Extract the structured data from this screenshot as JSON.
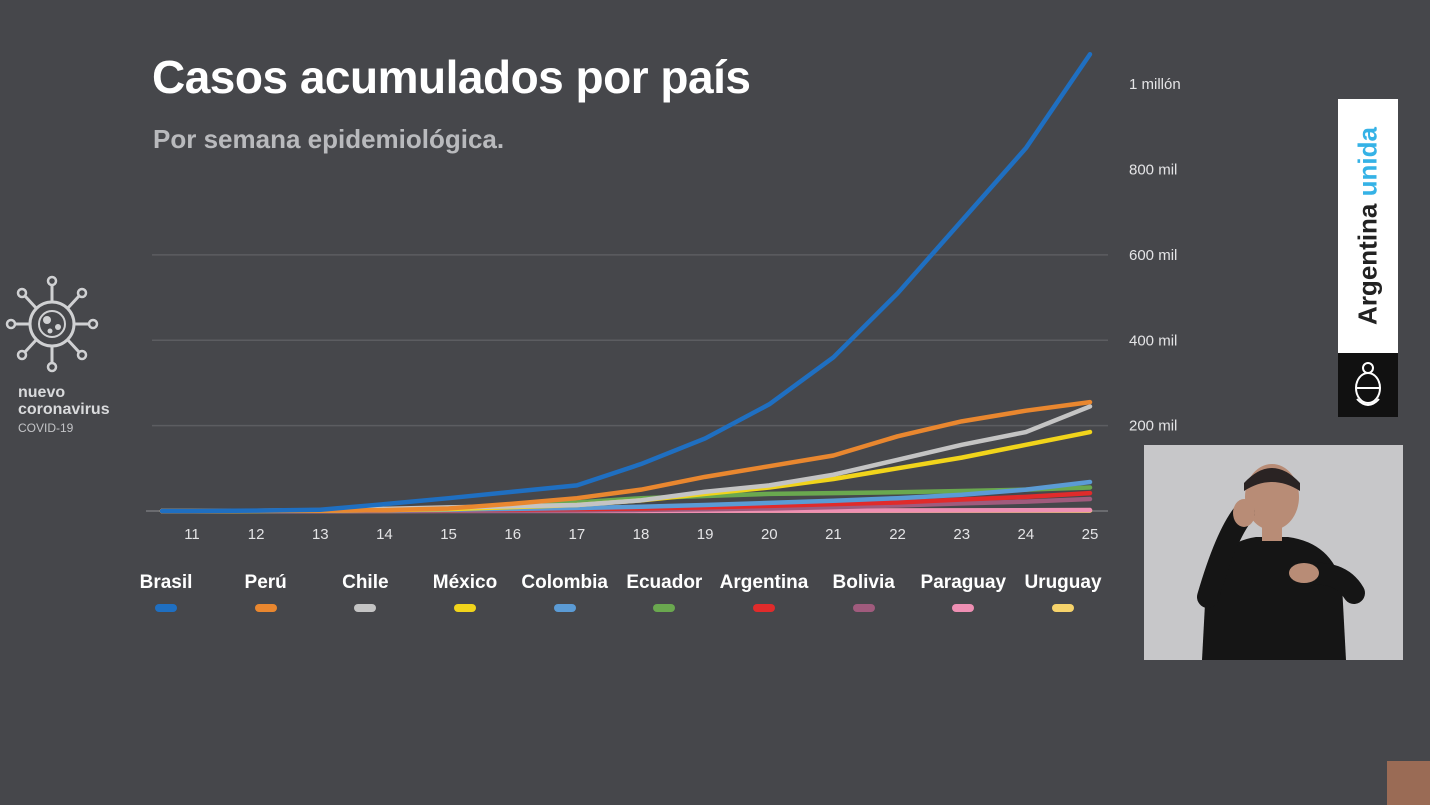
{
  "header": {
    "title": "Casos acumulados por país",
    "subtitle": "Por semana epidemiológica."
  },
  "logo": {
    "line1": "nuevo",
    "line2": "coronavirus",
    "line3": "COVID-19",
    "icon": "virus-icon"
  },
  "brand": {
    "word1": "Argentina",
    "word2": "unida",
    "accent_color": "#35b2e6",
    "icon": "national-seal-icon"
  },
  "chart_data": {
    "type": "line",
    "title": "Casos acumulados por país",
    "subtitle": "Por semana epidemiológica.",
    "x": [
      11,
      12,
      13,
      14,
      15,
      16,
      17,
      18,
      19,
      20,
      21,
      22,
      23,
      24,
      25
    ],
    "x_tick_labels": [
      "11",
      "12",
      "13",
      "14",
      "15",
      "16",
      "17",
      "18",
      "19",
      "20",
      "21",
      "22",
      "23",
      "24",
      "25"
    ],
    "y_ticks": [
      200000,
      400000,
      600000,
      800000,
      1000000
    ],
    "y_tick_labels": [
      "200 mil",
      "400 mil",
      "600 mil",
      "800 mil",
      "1 millón"
    ],
    "ylim": [
      0,
      1080000
    ],
    "y_axis_position": "right",
    "gridlines_visible_at": [
      200000,
      400000,
      600000
    ],
    "legend_position": "bottom",
    "series": [
      {
        "name": "Brasil",
        "color": "#1f6fc1",
        "values": [
          0,
          1000,
          3000,
          16000,
          30000,
          45000,
          60000,
          110000,
          170000,
          250000,
          360000,
          510000,
          680000,
          850000,
          1070000
        ]
      },
      {
        "name": "Perú",
        "color": "#e9872f",
        "values": [
          0,
          500,
          1000,
          2000,
          6000,
          17000,
          30000,
          50000,
          80000,
          105000,
          130000,
          175000,
          210000,
          235000,
          255000
        ]
      },
      {
        "name": "Chile",
        "color": "#c4c4c4",
        "values": [
          0,
          700,
          2000,
          5000,
          8500,
          11000,
          14000,
          25000,
          45000,
          60000,
          85000,
          120000,
          155000,
          185000,
          245000
        ]
      },
      {
        "name": "México",
        "color": "#f1d41b",
        "values": [
          0,
          300,
          800,
          2000,
          4500,
          9000,
          14000,
          25000,
          40000,
          55000,
          75000,
          100000,
          125000,
          155000,
          185000
        ]
      },
      {
        "name": "Colombia",
        "color": "#5b9bd5",
        "values": [
          0,
          200,
          500,
          1500,
          3000,
          5000,
          7000,
          10000,
          14000,
          19000,
          24000,
          30000,
          38000,
          50000,
          68000
        ]
      },
      {
        "name": "Ecuador",
        "color": "#6aa84f",
        "values": [
          0,
          100,
          1500,
          2500,
          5000,
          10000,
          20000,
          30000,
          35000,
          40000,
          42000,
          44000,
          47000,
          50000,
          55000
        ]
      },
      {
        "name": "Argentina",
        "color": "#e02b2b",
        "values": [
          0,
          200,
          800,
          1500,
          2500,
          3500,
          4500,
          6000,
          8500,
          12000,
          16000,
          20000,
          27000,
          33000,
          42000
        ]
      },
      {
        "name": "Bolivia",
        "color": "#a05b7d",
        "values": [
          0,
          50,
          100,
          300,
          500,
          700,
          1200,
          2500,
          4000,
          6000,
          9000,
          13000,
          18000,
          22000,
          28000
        ]
      },
      {
        "name": "Paraguay",
        "color": "#ee8fb3",
        "values": [
          0,
          50,
          100,
          150,
          200,
          250,
          300,
          400,
          600,
          800,
          1000,
          1200,
          1400,
          1800,
          2200
        ]
      },
      {
        "name": "Uruguay",
        "color": "#f6d36b",
        "values": [
          0,
          50,
          150,
          300,
          450,
          550,
          600,
          650,
          700,
          750,
          800,
          850,
          900,
          950,
          1000
        ]
      }
    ]
  }
}
